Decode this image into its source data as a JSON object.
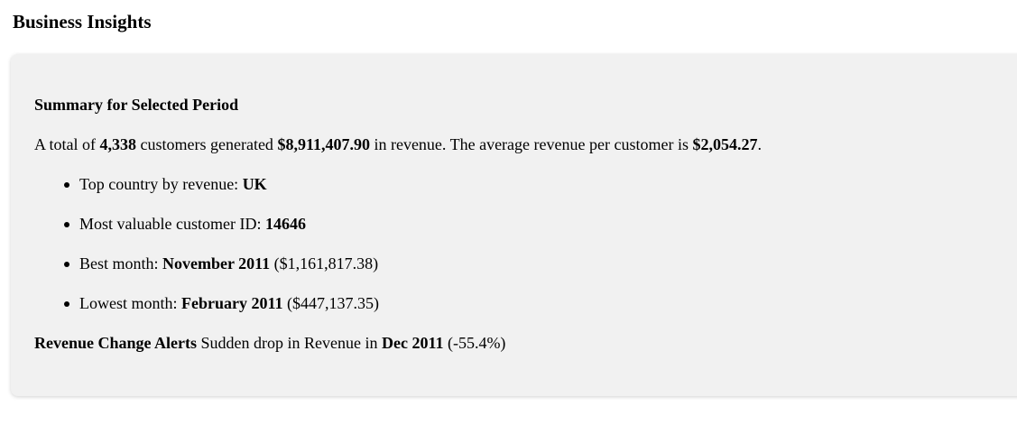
{
  "page": {
    "title": "Business Insights"
  },
  "summary": {
    "heading": "Summary for Selected Period",
    "text": {
      "prefix": "A total of ",
      "customers": "4,338",
      "mid1": " customers generated ",
      "revenue": "$8,911,407.90",
      "mid2": " in revenue. The average revenue per customer is ",
      "avg_revenue": "$2,054.27",
      "suffix": "."
    },
    "bullets": [
      {
        "label": "Top country by revenue: ",
        "value": "UK",
        "extra": ""
      },
      {
        "label": "Most valuable customer ID: ",
        "value": "14646",
        "extra": ""
      },
      {
        "label": "Best month: ",
        "value": "November 2011",
        "extra": " ($1,161,817.38)"
      },
      {
        "label": "Lowest month: ",
        "value": "February 2011",
        "extra": " ($447,137.35)"
      }
    ]
  },
  "alerts": {
    "heading": "Revenue Change Alerts",
    "text_prefix": " Sudden drop in Revenue in ",
    "month": "Dec 2011",
    "change": " (-55.4%)"
  }
}
